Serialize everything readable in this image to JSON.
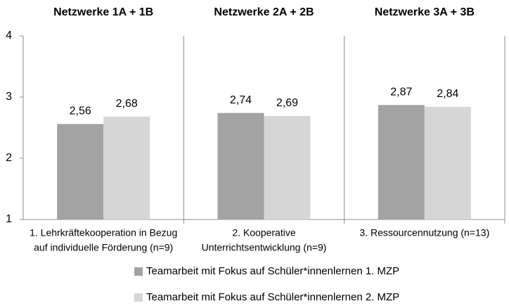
{
  "chart_data": {
    "type": "bar",
    "group_titles": [
      "Netzwerke 1A + 1B",
      "Netzwerke 2A + 2B",
      "Netzwerke 3A + 3B"
    ],
    "categories": [
      [
        "1. Lehrkräftekooperation in Bezug",
        "auf individuelle Förderung (n=9)"
      ],
      [
        "2. Kooperative",
        "Unterrichtsentwicklung (n=9)"
      ],
      [
        "3. Ressourcennutzung (n=13)"
      ]
    ],
    "series": [
      {
        "name": "Teamarbeit mit Fokus auf Schüler*innenlernen 1. MZP",
        "color": "#a3a3a3",
        "values": [
          2.56,
          2.74,
          2.87
        ],
        "value_labels": [
          "2,56",
          "2,74",
          "2,87"
        ]
      },
      {
        "name": "Teamarbeit mit Fokus auf Schüler*innenlernen 2. MZP",
        "color": "#d6d6d6",
        "values": [
          2.68,
          2.69,
          2.84
        ],
        "value_labels": [
          "2,68",
          "2,69",
          "2,84"
        ]
      }
    ],
    "ylim": [
      1,
      4
    ],
    "yticks": [
      1,
      2,
      3,
      4
    ],
    "grid": false
  }
}
